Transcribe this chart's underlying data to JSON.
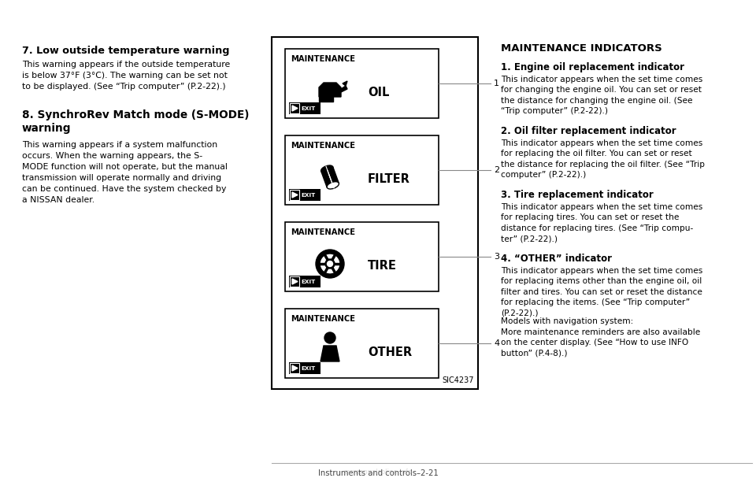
{
  "bg_color": "#ffffff",
  "page_width": 9.6,
  "page_height": 6.07,
  "left_column": {
    "heading1": "7. Low outside temperature warning",
    "para1": "This warning appears if the outside temperature\nis below 37°F (3°C). The warning can be set not\nto be displayed. (See “Trip computer” (P.2-22).)",
    "heading2": "8. SynchroRev Match mode (S-MODE)\nwarning",
    "para2": "This warning appears if a system malfunction\noccurs. When the warning appears, the S-\nMODE function will not operate, but the manual\ntransmission will operate normally and driving\ncan be continued. Have the system checked by\na NISSAN dealer."
  },
  "center_labels": [
    {
      "label": "OIL",
      "number": "1"
    },
    {
      "label": "FILTER",
      "number": "2"
    },
    {
      "label": "TIRE",
      "number": "3"
    },
    {
      "label": "OTHER",
      "number": "4"
    }
  ],
  "sic_code": "SIC4237",
  "right_column": {
    "main_heading": "MAINTENANCE INDICATORS",
    "sections": [
      {
        "heading": "1. Engine oil replacement indicator",
        "body": "This indicator appears when the set time comes\nfor changing the engine oil. You can set or reset\nthe distance for changing the engine oil. (See\n“Trip computer” (P.2-22).)"
      },
      {
        "heading": "2. Oil filter replacement indicator",
        "body": "This indicator appears when the set time comes\nfor replacing the oil filter. You can set or reset\nthe distance for replacing the oil filter. (See “Trip\ncomputer” (P.2-22).)"
      },
      {
        "heading": "3. Tire replacement indicator",
        "body": "This indicator appears when the set time comes\nfor replacing tires. You can set or reset the\ndistance for replacing tires. (See “Trip compu-\nter” (P.2-22).)"
      },
      {
        "heading": "4. “OTHER” indicator",
        "body": "This indicator appears when the set time comes\nfor replacing items other than the engine oil, oil\nfilter and tires. You can set or reset the distance\nfor replacing the items. (See “Trip computer”\n(P.2-22).)"
      }
    ],
    "footer1": "Models with navigation system:",
    "footer2": "More maintenance reminders are also available\non the center display. (See “How to use INFO\nbutton” (P.4-8).)"
  },
  "bottom_footer": "Instruments and controls–2-21"
}
